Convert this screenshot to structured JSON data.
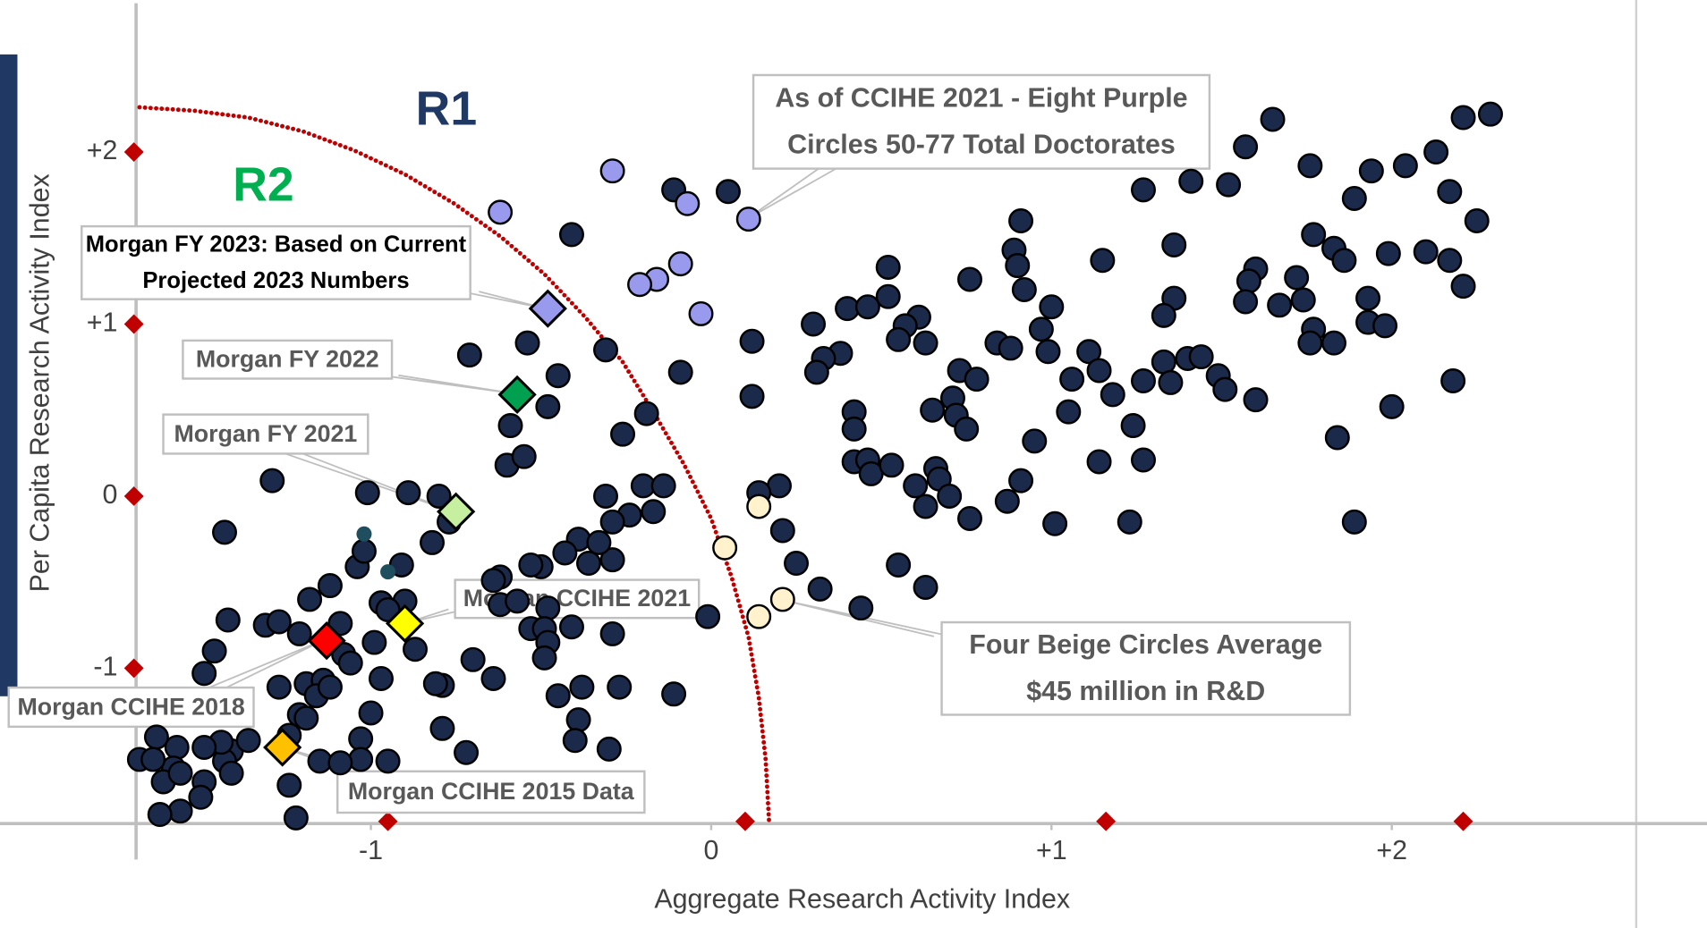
{
  "chart_data": {
    "type": "scatter",
    "x_label": "Aggregate Research Activity Index",
    "y_label": "Per Capita Research Activity Index",
    "xlim": [
      -1.69,
      2.6
    ],
    "ylim": [
      -1.89,
      2.82
    ],
    "xticks": [
      {
        "value": -1,
        "label": "-1"
      },
      0,
      {
        "value": 1,
        "label": "+1"
      },
      {
        "value": 2,
        "label": "+2"
      }
    ],
    "yticks": [
      {
        "value": -1,
        "label": "-1"
      },
      0,
      {
        "value": 1,
        "label": "+1"
      },
      {
        "value": 2,
        "label": "+2"
      }
    ],
    "x_markers": [
      -0.95,
      0.1,
      1.16,
      2.21
    ],
    "marker_color": "#c00000",
    "regions": [
      {
        "text": "R1",
        "color": "#1f3864"
      },
      {
        "text": "R2",
        "color": "#00b050"
      }
    ],
    "boundary": {
      "color": "#c00000",
      "x": [
        -1.68,
        -1.52,
        -1.36,
        -1.2,
        -1.05,
        -0.9,
        -0.755,
        -0.62,
        -0.49,
        -0.37,
        -0.26,
        -0.17,
        -0.08,
        0.0,
        0.06,
        0.11,
        0.14,
        0.16,
        0.17
      ],
      "y": [
        2.26,
        2.24,
        2.2,
        2.12,
        2.01,
        1.87,
        1.7,
        1.51,
        1.29,
        1.04,
        0.78,
        0.49,
        0.185,
        -0.13,
        -0.47,
        -0.82,
        -1.17,
        -1.53,
        -1.89
      ]
    },
    "series": [
      {
        "marker": "circle",
        "color": "#1b2a4a",
        "x": [
          1.65,
          2.21,
          2.29,
          1.57,
          2.13,
          2.04,
          1.94,
          1.76,
          1.52,
          1.41,
          1.27,
          2.17,
          1.89,
          2.25,
          0.91,
          1.77,
          1.36,
          1.83,
          2.1,
          1.99,
          1.86,
          1.15,
          2.17,
          0.89,
          0.9,
          1.6,
          1.72,
          0.52,
          0.76,
          2.21,
          1.58,
          0.92,
          1.36,
          1.93,
          1.57,
          1.67,
          1.74,
          1.0,
          0.52,
          0.4,
          0.46,
          1.33,
          0.61,
          1.93,
          1.98,
          1.77,
          0.3,
          0.57,
          0.97,
          1.76,
          1.83,
          0.55,
          0.63,
          0.84,
          0.88,
          0.99,
          1.11,
          1.33,
          1.4,
          1.44,
          1.14,
          0.38,
          0.33,
          0.31,
          0.73,
          0.78,
          1.06,
          1.27,
          1.35,
          1.49,
          1.51,
          1.6,
          2.18,
          1.18,
          0.71,
          0.65,
          0.72,
          0.75,
          1.05,
          1.24,
          2.0,
          0.42,
          0.42,
          0.95,
          0.42,
          0.46,
          0.47,
          0.53,
          0.6,
          0.66,
          0.67,
          0.7,
          0.63,
          0.76,
          0.87,
          0.91,
          1.14,
          1.27,
          1.23,
          1.01,
          1.84,
          1.89,
          0.55,
          0.63,
          0.44,
          -0.41,
          -0.54,
          -0.71,
          -0.31,
          -0.45,
          -0.48,
          -0.59,
          -0.6,
          -0.55,
          -0.26,
          -0.19,
          -0.09,
          0.12,
          0.12,
          -0.31,
          -0.2,
          -0.14,
          -0.24,
          -0.17,
          -0.29,
          -0.39,
          -0.43,
          -0.36,
          -0.29,
          -0.33,
          -0.5,
          -0.53,
          -0.62,
          -0.64,
          -0.62,
          -0.57,
          -0.48,
          -0.53,
          -0.49,
          -0.41,
          -0.29,
          -0.48,
          -0.49,
          -0.45,
          -0.38,
          -0.39,
          -0.4,
          -0.3,
          -0.27,
          -0.11,
          -0.01,
          0.2,
          0.14,
          0.21,
          0.25,
          0.32,
          -0.8,
          -0.89,
          -0.82,
          -0.77,
          -1.01,
          -1.29,
          -1.43,
          -0.91,
          -1.04,
          -1.02,
          -1.12,
          -0.97,
          -0.9,
          -0.95,
          -1.18,
          -1.09,
          -0.87,
          -0.99,
          -0.79,
          -0.81,
          -0.7,
          -0.64,
          -0.97,
          -1.42,
          -1.31,
          -1.27,
          -1.21,
          -1.46,
          -1.49,
          -1.27,
          -1.19,
          -1.14,
          -1.16,
          -1.12,
          -1.08,
          -1.06,
          -1.21,
          -1.0,
          -0.79,
          -0.72,
          -1.03,
          -1.03,
          -1.15,
          -1.09,
          -1.24,
          -1.19,
          -1.41,
          -1.43,
          -1.44,
          -1.49,
          -1.57,
          -1.58,
          -1.63,
          -1.68,
          -1.64,
          -1.61,
          -1.56,
          -1.49,
          -1.41,
          -1.36,
          -1.24,
          -1.5,
          -1.56,
          -1.62,
          -1.22,
          -0.95,
          -0.11,
          0.05
        ],
        "y": [
          2.19,
          2.2,
          2.22,
          2.03,
          2.0,
          1.92,
          1.89,
          1.92,
          1.81,
          1.83,
          1.78,
          1.77,
          1.73,
          1.6,
          1.6,
          1.52,
          1.46,
          1.44,
          1.42,
          1.41,
          1.37,
          1.37,
          1.37,
          1.43,
          1.34,
          1.32,
          1.27,
          1.33,
          1.26,
          1.22,
          1.25,
          1.2,
          1.15,
          1.15,
          1.13,
          1.11,
          1.14,
          1.1,
          1.16,
          1.09,
          1.1,
          1.05,
          1.04,
          1.01,
          0.99,
          0.97,
          1.0,
          0.99,
          0.97,
          0.89,
          0.89,
          0.91,
          0.89,
          0.89,
          0.86,
          0.84,
          0.84,
          0.78,
          0.8,
          0.81,
          0.73,
          0.83,
          0.8,
          0.72,
          0.73,
          0.68,
          0.68,
          0.67,
          0.66,
          0.7,
          0.62,
          0.56,
          0.67,
          0.59,
          0.57,
          0.5,
          0.47,
          0.39,
          0.49,
          0.41,
          0.52,
          0.49,
          0.39,
          0.32,
          0.2,
          0.21,
          0.13,
          0.18,
          0.06,
          0.16,
          0.1,
          0,
          -0.06,
          -0.13,
          -0.03,
          0.09,
          0.2,
          0.21,
          -0.15,
          -0.16,
          0.34,
          -0.15,
          -0.4,
          -0.53,
          -0.65,
          1.52,
          0.89,
          0.82,
          0.85,
          0.7,
          0.52,
          0.41,
          0.18,
          0.23,
          0.36,
          0.48,
          0.72,
          0.9,
          0.58,
          0,
          0.06,
          0.06,
          -0.11,
          -0.09,
          -0.15,
          -0.25,
          -0.33,
          -0.39,
          -0.37,
          -0.27,
          -0.41,
          -0.4,
          -0.47,
          -0.49,
          -0.63,
          -0.61,
          -0.65,
          -0.77,
          -0.77,
          -0.76,
          -0.8,
          -0.85,
          -0.94,
          -1.16,
          -1.11,
          -1.3,
          -1.42,
          -1.47,
          -1.11,
          -1.15,
          -0.7,
          0.06,
          0.02,
          -0.2,
          -0.39,
          -0.54,
          0,
          0.02,
          -0.27,
          -0.15,
          0.02,
          0.09,
          -0.21,
          -0.4,
          -0.41,
          -0.32,
          -0.52,
          -0.62,
          -0.61,
          -0.66,
          -0.6,
          -0.74,
          -0.89,
          -0.85,
          -1.1,
          -1.09,
          -0.95,
          -1.06,
          -1.06,
          -0.72,
          -0.75,
          -0.73,
          -0.8,
          -0.9,
          -1.03,
          -1.11,
          -1.09,
          -1.07,
          -1.16,
          -1.11,
          -0.92,
          -0.97,
          -1.27,
          -1.26,
          -1.35,
          -1.49,
          -1.41,
          -1.53,
          -1.54,
          -1.55,
          -1.39,
          -1.29,
          -1.48,
          -1.54,
          -1.43,
          -1.46,
          -1.46,
          -1.58,
          -1.4,
          -1.53,
          -1.53,
          -1.66,
          -1.61,
          -1.66,
          -1.61,
          -1.42,
          -1.68,
          -1.75,
          -1.83,
          -1.85,
          -1.87,
          -1.54,
          1.78,
          1.77
        ]
      },
      {
        "marker": "small",
        "color": "#1f4e5f",
        "x": [
          -1.02,
          -0.95
        ],
        "y": [
          -0.22,
          -0.44
        ]
      },
      {
        "marker": "circle",
        "color": "#9999ee",
        "x": [
          -0.62,
          -0.29,
          -0.07,
          0.11,
          -0.09,
          -0.16,
          -0.21,
          -0.03
        ],
        "y": [
          1.65,
          1.89,
          1.7,
          1.61,
          1.35,
          1.26,
          1.23,
          1.06
        ]
      },
      {
        "marker": "circle",
        "color": "#fff2cc",
        "x": [
          0.14,
          0.04,
          0.21,
          0.14
        ],
        "y": [
          -0.06,
          -0.3,
          -0.6,
          -0.7
        ]
      },
      {
        "marker": "diamond",
        "color": "#9999ee",
        "x": [
          -0.48
        ],
        "y": [
          1.09
        ]
      },
      {
        "marker": "diamond",
        "color": "#00a050",
        "x": [
          -0.57
        ],
        "y": [
          0.59
        ]
      },
      {
        "marker": "diamond",
        "color": "#c6efa0",
        "x": [
          -0.75
        ],
        "y": [
          -0.09
        ]
      },
      {
        "marker": "diamond",
        "color": "#ffff00",
        "x": [
          -0.9
        ],
        "y": [
          -0.74
        ]
      },
      {
        "marker": "diamond",
        "color": "#ff0000",
        "x": [
          -1.13
        ],
        "y": [
          -0.84
        ]
      },
      {
        "marker": "diamond",
        "color": "#ffc000",
        "x": [
          -1.26
        ],
        "y": [
          -1.46
        ]
      }
    ],
    "annotations": [
      [
        "As of CCIHE 2021 - Eight Purple",
        "Circles 50-77 Total Doctorates"
      ],
      [
        "Morgan FY 2023: Based on Current",
        "Projected 2023 Numbers"
      ],
      [
        "Morgan FY 2022"
      ],
      [
        "Morgan FY 2021"
      ],
      [
        "Morgan CCIHE 2021"
      ],
      [
        "Morgan CCIHE 2018"
      ],
      [
        "Morgan CCIHE 2015 Data"
      ],
      [
        "Four Beige Circles Average",
        "$45 million in R&D"
      ]
    ]
  }
}
